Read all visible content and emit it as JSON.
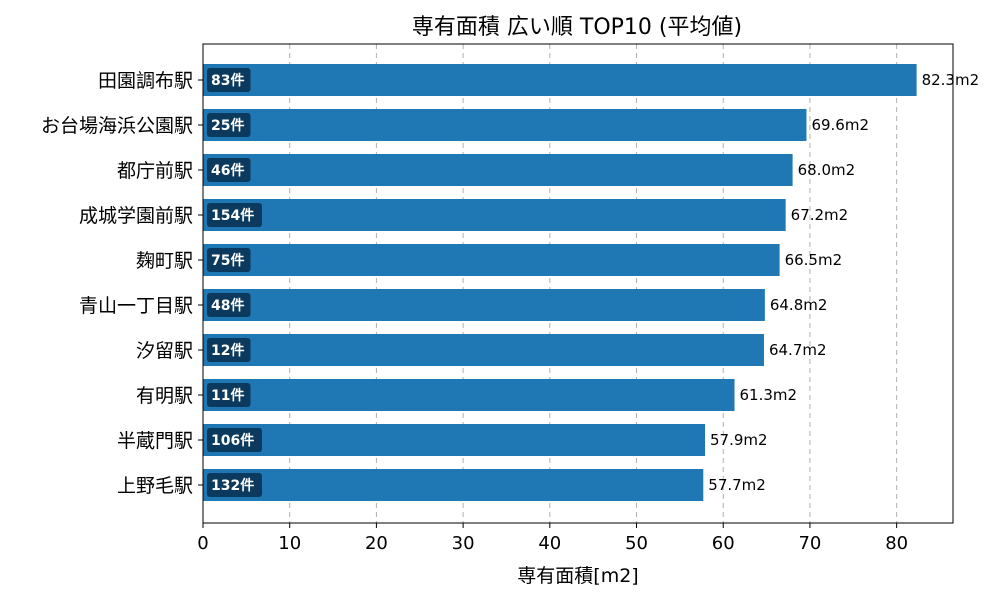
{
  "chart_data": {
    "type": "bar",
    "orientation": "horizontal",
    "title": "専有面積 広い順 TOP10 (平均値)",
    "xlabel": "専有面積[m2]",
    "ylabel": "",
    "xlim": [
      0,
      86.5
    ],
    "xticks": [
      0,
      10,
      20,
      30,
      40,
      50,
      60,
      70,
      80
    ],
    "grid": "x-dashed",
    "bar_color": "#1f77b4",
    "badge_color": "#0b3a5e",
    "categories": [
      "田園調布駅",
      "お台場海浜公園駅",
      "都庁前駅",
      "成城学園前駅",
      "麹町駅",
      "青山一丁目駅",
      "汐留駅",
      "有明駅",
      "半蔵門駅",
      "上野毛駅"
    ],
    "values": [
      82.3,
      69.6,
      68.0,
      67.2,
      66.5,
      64.8,
      64.7,
      61.3,
      57.9,
      57.7
    ],
    "value_labels": [
      "82.3m2",
      "69.6m2",
      "68.0m2",
      "67.2m2",
      "66.5m2",
      "64.8m2",
      "64.7m2",
      "61.3m2",
      "57.9m2",
      "57.7m2"
    ],
    "count_labels": [
      "83件",
      "25件",
      "46件",
      "154件",
      "75件",
      "48件",
      "12件",
      "11件",
      "106件",
      "132件"
    ]
  }
}
